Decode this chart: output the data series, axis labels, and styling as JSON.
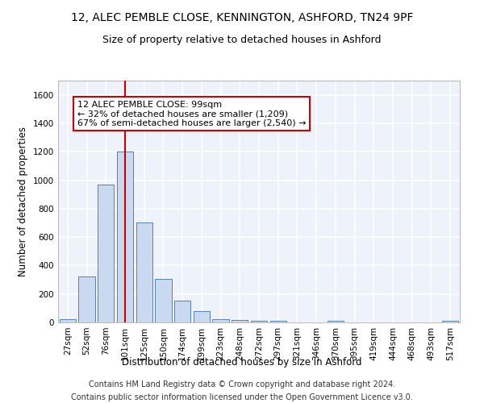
{
  "title": "12, ALEC PEMBLE CLOSE, KENNINGTON, ASHFORD, TN24 9PF",
  "subtitle": "Size of property relative to detached houses in Ashford",
  "xlabel": "Distribution of detached houses by size in Ashford",
  "ylabel": "Number of detached properties",
  "categories": [
    "27sqm",
    "52sqm",
    "76sqm",
    "101sqm",
    "125sqm",
    "150sqm",
    "174sqm",
    "199sqm",
    "223sqm",
    "248sqm",
    "272sqm",
    "297sqm",
    "321sqm",
    "346sqm",
    "370sqm",
    "395sqm",
    "419sqm",
    "444sqm",
    "468sqm",
    "493sqm",
    "517sqm"
  ],
  "values": [
    25,
    325,
    970,
    1200,
    700,
    305,
    155,
    80,
    25,
    15,
    10,
    10,
    0,
    0,
    10,
    0,
    0,
    0,
    0,
    0,
    10
  ],
  "bar_color": "#c9d9f0",
  "bar_edge_color": "#5580b0",
  "vline_x_index": 3,
  "vline_color": "#cc0000",
  "annotation_line1": "12 ALEC PEMBLE CLOSE: 99sqm",
  "annotation_line2": "← 32% of detached houses are smaller (1,209)",
  "annotation_line3": "67% of semi-detached houses are larger (2,540) →",
  "annotation_box_color": "#ffffff",
  "annotation_box_edge_color": "#cc0000",
  "ylim": [
    0,
    1700
  ],
  "yticks": [
    0,
    200,
    400,
    600,
    800,
    1000,
    1200,
    1400,
    1600
  ],
  "footer_line1": "Contains HM Land Registry data © Crown copyright and database right 2024.",
  "footer_line2": "Contains public sector information licensed under the Open Government Licence v3.0.",
  "bg_color": "#eef2fb",
  "grid_color": "#ffffff",
  "title_fontsize": 10,
  "subtitle_fontsize": 9,
  "axis_label_fontsize": 8.5,
  "tick_fontsize": 7.5,
  "annotation_fontsize": 8,
  "footer_fontsize": 7
}
